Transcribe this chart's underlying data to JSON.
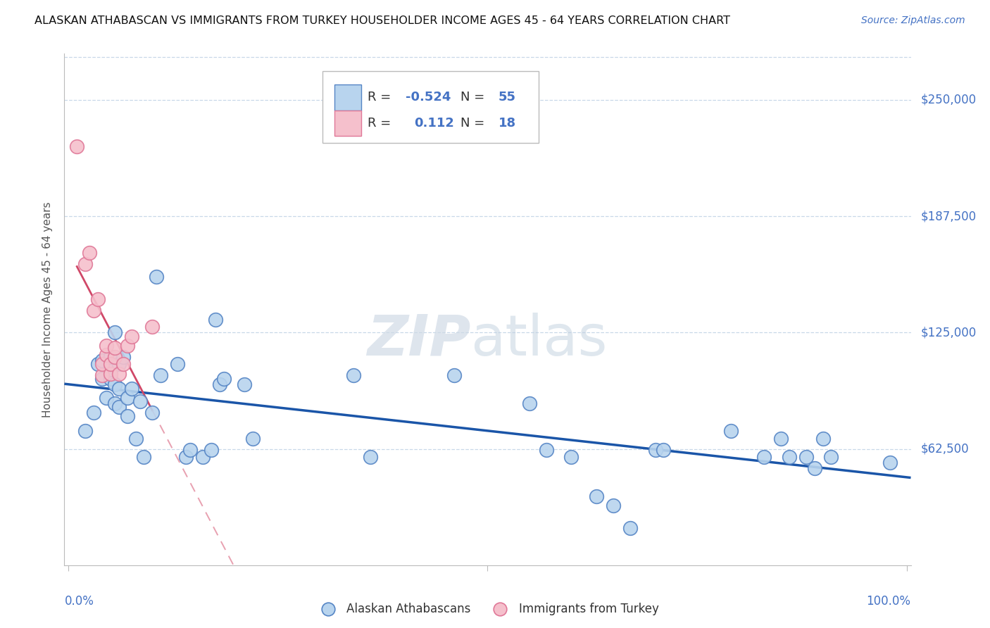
{
  "title": "ALASKAN ATHABASCAN VS IMMIGRANTS FROM TURKEY HOUSEHOLDER INCOME AGES 45 - 64 YEARS CORRELATION CHART",
  "source": "Source: ZipAtlas.com",
  "ylabel": "Householder Income Ages 45 - 64 years",
  "ytick_labels": [
    "$62,500",
    "$125,000",
    "$187,500",
    "$250,000"
  ],
  "ytick_values": [
    62500,
    125000,
    187500,
    250000
  ],
  "ymin": 0,
  "ymax": 275000,
  "xmin": -0.005,
  "xmax": 1.005,
  "blue_R": -0.524,
  "blue_N": 55,
  "pink_R": 0.112,
  "pink_N": 18,
  "blue_marker_face": "#b8d4ee",
  "blue_marker_edge": "#5585c5",
  "pink_marker_face": "#f5c0cc",
  "pink_marker_edge": "#e07898",
  "blue_line_color": "#1a55a8",
  "pink_line_color": "#d04868",
  "pink_dash_color": "#e8a0b0",
  "grid_color": "#c8d8e8",
  "text_color_blue": "#4472c4",
  "watermark_zip_color": "#ccd8e5",
  "watermark_atlas_color": "#b8ccde",
  "legend_r_color": "#4472c4",
  "legend_n_color": "#4472c4",
  "blue_points_x": [
    0.02,
    0.03,
    0.035,
    0.04,
    0.04,
    0.045,
    0.05,
    0.05,
    0.05,
    0.055,
    0.055,
    0.055,
    0.06,
    0.06,
    0.06,
    0.065,
    0.07,
    0.07,
    0.075,
    0.08,
    0.085,
    0.09,
    0.1,
    0.105,
    0.11,
    0.13,
    0.14,
    0.145,
    0.16,
    0.17,
    0.175,
    0.18,
    0.185,
    0.21,
    0.22,
    0.34,
    0.36,
    0.46,
    0.55,
    0.57,
    0.6,
    0.63,
    0.65,
    0.67,
    0.7,
    0.71,
    0.79,
    0.83,
    0.85,
    0.86,
    0.88,
    0.89,
    0.9,
    0.91,
    0.98
  ],
  "blue_points_y": [
    72000,
    82000,
    108000,
    100000,
    110000,
    90000,
    100000,
    105000,
    112000,
    87000,
    97000,
    125000,
    85000,
    95000,
    108000,
    112000,
    80000,
    90000,
    95000,
    68000,
    88000,
    58000,
    82000,
    155000,
    102000,
    108000,
    58000,
    62000,
    58000,
    62000,
    132000,
    97000,
    100000,
    97000,
    68000,
    102000,
    58000,
    102000,
    87000,
    62000,
    58000,
    37000,
    32000,
    20000,
    62000,
    62000,
    72000,
    58000,
    68000,
    58000,
    58000,
    52000,
    68000,
    58000,
    55000
  ],
  "pink_points_x": [
    0.01,
    0.02,
    0.025,
    0.03,
    0.035,
    0.04,
    0.04,
    0.045,
    0.045,
    0.05,
    0.05,
    0.055,
    0.055,
    0.06,
    0.065,
    0.07,
    0.075,
    0.1
  ],
  "pink_points_y": [
    225000,
    162000,
    168000,
    137000,
    143000,
    102000,
    108000,
    113000,
    118000,
    103000,
    108000,
    112000,
    117000,
    103000,
    108000,
    118000,
    123000,
    128000
  ]
}
